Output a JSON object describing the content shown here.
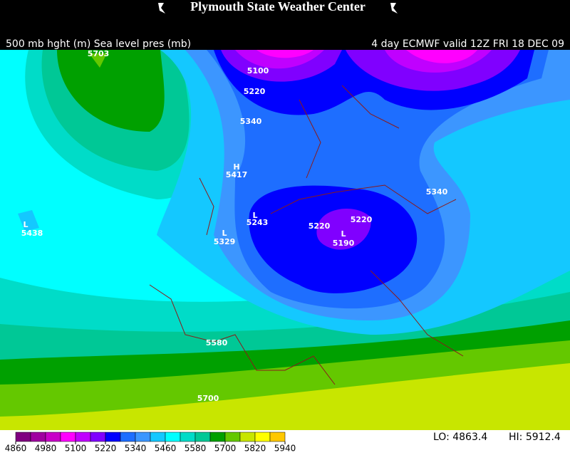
{
  "header": {
    "title": "Plymouth State Weather Center"
  },
  "subtitle": {
    "left": "500 mb hght (m) Sea level pres (mb)",
    "right": "4 day ECMWF valid 12Z FRI 18 DEC 09"
  },
  "map": {
    "labels": [
      "5703",
      "5100",
      "5220",
      "5340",
      "H",
      "5417",
      "L",
      "5438",
      "L",
      "5243",
      "L",
      "5329",
      "5220",
      "5220",
      "L",
      "5190",
      "5340",
      "5580",
      "5700"
    ]
  },
  "legend": {
    "ticks": [
      4860,
      4980,
      5100,
      5220,
      5340,
      5460,
      5580,
      5700,
      5820,
      5940
    ],
    "colors": [
      "#800080",
      "#a000a0",
      "#c800c8",
      "#ff00ff",
      "#c000ff",
      "#8000ff",
      "#0000ff",
      "#1e6eff",
      "#3c96ff",
      "#14c8ff",
      "#00ffff",
      "#00dcc8",
      "#00c896",
      "#00a000",
      "#64c800",
      "#c8e600",
      "#ffff00",
      "#ffc800"
    ]
  },
  "footer": {
    "lo": "LO: 4863.4",
    "hi": "HI: 5912.4"
  }
}
